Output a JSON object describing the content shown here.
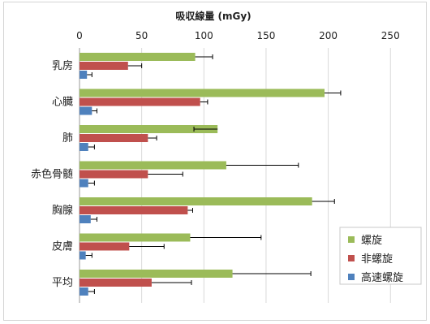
{
  "chart_data": {
    "type": "bar",
    "orientation": "horizontal",
    "title": "",
    "xlabel": "吸収線量 (mGy)",
    "ylabel": "",
    "xlim": [
      0,
      250
    ],
    "xticks": [
      0,
      50,
      100,
      150,
      200,
      250
    ],
    "grid": true,
    "legend_position": "right",
    "categories": [
      "乳房",
      "心臓",
      "肺",
      "赤色骨髄",
      "胸腺",
      "皮膚",
      "平均"
    ],
    "series": [
      {
        "name": "螺旋",
        "color": "#9bbb59",
        "values": [
          93,
          197,
          111,
          118,
          187,
          89,
          123
        ],
        "error_upper": [
          107,
          210,
          92,
          176,
          205,
          146,
          186
        ]
      },
      {
        "name": "非螺旋",
        "color": "#c0504d",
        "values": [
          39,
          97,
          55,
          55,
          87,
          40,
          58
        ],
        "error_upper": [
          50,
          103,
          62,
          83,
          91,
          68,
          90
        ]
      },
      {
        "name": "高速螺旋",
        "color": "#4f81bd",
        "values": [
          6,
          10,
          7,
          7,
          9,
          5,
          7
        ],
        "error_upper": [
          10,
          14,
          12,
          12,
          14,
          10,
          12
        ]
      }
    ]
  }
}
